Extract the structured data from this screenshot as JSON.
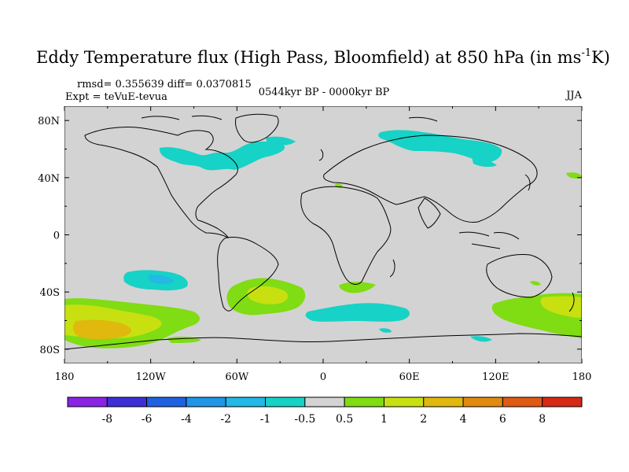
{
  "title": {
    "main": "Eddy Temperature flux (High Pass, Bloomfield) at 850 hPa (in ms",
    "superscript": "-1",
    "unit_tail": "K)"
  },
  "stats": "rmsd= 0.355639  diff= 0.0370815",
  "experiment": "Expt = teVuE-tevua",
  "period": "0544kyr BP - 0000kyr BP",
  "season": "JJA",
  "axes": {
    "lon_ticks": [
      "180",
      "120W",
      "60W",
      "0",
      "60E",
      "120E",
      "180"
    ],
    "lat_ticks": [
      "80N",
      "40N",
      "0",
      "40S",
      "80S"
    ]
  },
  "colorbar": {
    "colors": [
      "#8a23e6",
      "#3e2ed6",
      "#1f61e0",
      "#1f95e8",
      "#23b8e6",
      "#17d2c6",
      "#d3d3d3",
      "#80dc13",
      "#c8e010",
      "#e0b80e",
      "#e08a10",
      "#e05a14",
      "#d62a16"
    ],
    "labels": [
      "-8",
      "-6",
      "-4",
      "-2",
      "-1",
      "-0.5",
      "0.5",
      "1",
      "2",
      "4",
      "6",
      "8"
    ]
  },
  "map_colors": {
    "background": "#d3d3d3",
    "coast": "#000000"
  }
}
